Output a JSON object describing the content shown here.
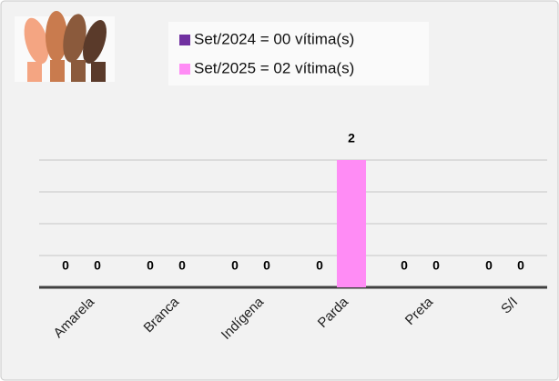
{
  "chart_data": {
    "type": "bar",
    "categories": [
      "Amarela",
      "Branca",
      "Indígena",
      "Parda",
      "Preta",
      "S/I"
    ],
    "series": [
      {
        "name": "Set/2024 = 00 vítima(s)",
        "color": "#7030a0",
        "values": [
          0,
          0,
          0,
          0,
          0,
          0
        ]
      },
      {
        "name": "Set/2025 = 02 vítima(s)",
        "color": "#ff8cf5",
        "values": [
          0,
          0,
          0,
          2,
          0,
          0
        ]
      }
    ],
    "ylim": [
      0,
      2
    ],
    "yticks": [
      0,
      0.5,
      1,
      1.5,
      2
    ],
    "grid": true
  }
}
